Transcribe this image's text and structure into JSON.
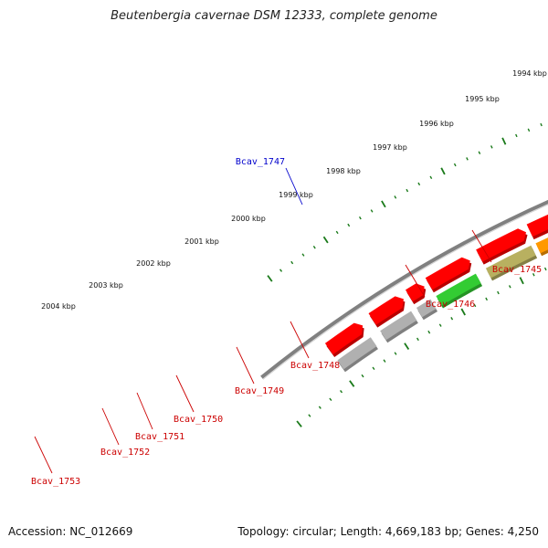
{
  "title": "Beutenbergia cavernae DSM 12333, complete genome",
  "footer": {
    "accession": "Accession: NC_012669",
    "summary": "Topology: circular; Length: 4,669,183 bp; Genes: 4,250"
  },
  "scale_labels": [
    "1994 kbp",
    "1995 kbp",
    "1996 kbp",
    "1997 kbp",
    "1998 kbp",
    "1999 kbp",
    "2000 kbp",
    "2001 kbp",
    "2002 kbp",
    "2003 kbp",
    "2004 kbp"
  ],
  "genes": [
    {
      "name": "Bcav_1745",
      "color": "#cc0000"
    },
    {
      "name": "Bcav_1746",
      "color": "#cc0000"
    },
    {
      "name": "Bcav_1747",
      "color": "#0000cc"
    },
    {
      "name": "Bcav_1748",
      "color": "#cc0000"
    },
    {
      "name": "Bcav_1749",
      "color": "#cc0000"
    },
    {
      "name": "Bcav_1750",
      "color": "#cc0000"
    },
    {
      "name": "Bcav_1751",
      "color": "#cc0000"
    },
    {
      "name": "Bcav_1752",
      "color": "#cc0000"
    },
    {
      "name": "Bcav_1753",
      "color": "#cc0000"
    }
  ],
  "colors": {
    "cds": "#ff0000",
    "highlight": "#0000ff",
    "tick": "#1a7a1a",
    "backbone": "#808080",
    "cog_olive": "#7a8a1a",
    "cog_gray": "#b0b0b0",
    "cog_dark": "#606060",
    "cog_green": "#33cc33",
    "cog_khaki": "#b8b060",
    "cog_orange": "#ff9900"
  }
}
